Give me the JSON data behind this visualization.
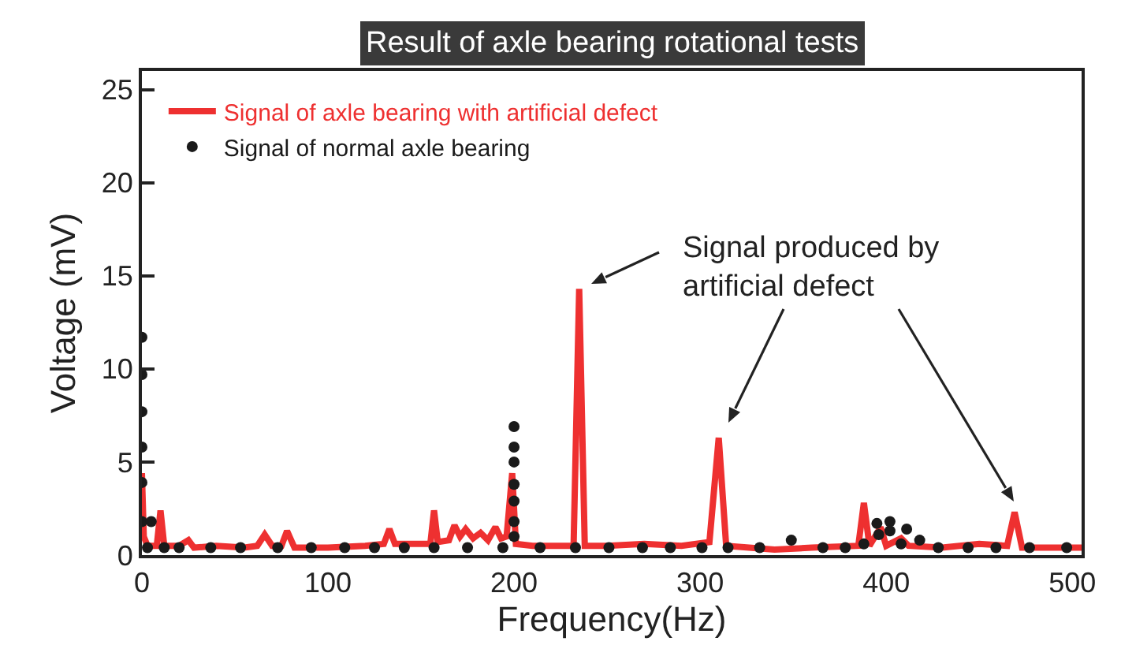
{
  "chart_data": {
    "type": "line",
    "title": "Result of axle bearing rotational tests",
    "xlabel": "Frequency(Hz)",
    "ylabel": "Voltage (mV)",
    "xlim": [
      0,
      505
    ],
    "xticks": [
      0,
      100,
      200,
      300,
      400,
      500
    ],
    "ylim": [
      0,
      26
    ],
    "yticks": [
      0,
      5,
      10,
      15,
      20,
      25
    ],
    "grid": false,
    "legend": "top left",
    "annotations": [
      "Signal produced by\nartificial defect"
    ],
    "series": [
      {
        "name": "Signal of axle bearing with artificial defect",
        "color": "#ee3030",
        "line_style": "solid",
        "marker": "none",
        "x": [
          0,
          1,
          3,
          8,
          10,
          12,
          20,
          25,
          28,
          40,
          55,
          62,
          66,
          70,
          75,
          78,
          82,
          100,
          120,
          130,
          133,
          136,
          150,
          155,
          157,
          159,
          165,
          168,
          171,
          174,
          178,
          182,
          186,
          190,
          193,
          196,
          199,
          201,
          210,
          225,
          232,
          235,
          238,
          250,
          270,
          290,
          305,
          310,
          314,
          340,
          360,
          385,
          388,
          391,
          397,
          400,
          408,
          412,
          430,
          450,
          465,
          469,
          473,
          490,
          505
        ],
        "values": [
          4.4,
          1.0,
          0.5,
          0.5,
          2.4,
          0.5,
          0.5,
          0.8,
          0.4,
          0.5,
          0.4,
          0.5,
          1.1,
          0.5,
          0.5,
          1.3,
          0.4,
          0.4,
          0.5,
          0.6,
          1.4,
          0.6,
          0.6,
          0.6,
          2.4,
          0.7,
          0.8,
          1.6,
          1.0,
          1.4,
          0.9,
          1.2,
          0.8,
          1.5,
          0.9,
          1.0,
          4.4,
          0.6,
          0.5,
          0.5,
          0.5,
          14.3,
          0.5,
          0.5,
          0.6,
          0.5,
          0.7,
          6.3,
          0.5,
          0.3,
          0.4,
          0.5,
          2.8,
          0.5,
          1.5,
          0.5,
          0.9,
          0.5,
          0.4,
          0.6,
          0.5,
          2.3,
          0.4,
          0.4,
          0.4
        ]
      },
      {
        "name": "Signal of normal axle bearing",
        "type": "scatter",
        "color": "#1a1a1a",
        "marker": "circle",
        "x": [
          0,
          0,
          0,
          0,
          0,
          0,
          5,
          3,
          12,
          20,
          37,
          53,
          73,
          91,
          109,
          125,
          141,
          157,
          175,
          194,
          200,
          200,
          200,
          200,
          200,
          200,
          200,
          214,
          233,
          251,
          269,
          284,
          301,
          315,
          332,
          349,
          366,
          378,
          388,
          395,
          396,
          402,
          402,
          411,
          408,
          418,
          428,
          444,
          459,
          477,
          497
        ],
        "values": [
          11.7,
          9.7,
          7.7,
          5.8,
          3.9,
          1.8,
          1.8,
          0.4,
          0.4,
          0.4,
          0.4,
          0.4,
          0.4,
          0.4,
          0.4,
          0.4,
          0.4,
          0.4,
          0.4,
          0.4,
          6.9,
          5.8,
          5.0,
          3.8,
          2.9,
          1.8,
          1.0,
          0.4,
          0.4,
          0.4,
          0.4,
          0.4,
          0.4,
          0.4,
          0.4,
          0.8,
          0.4,
          0.4,
          0.6,
          1.7,
          1.1,
          1.8,
          1.3,
          1.4,
          0.6,
          0.8,
          0.4,
          0.4,
          0.4,
          0.4,
          0.4
        ]
      }
    ]
  }
}
